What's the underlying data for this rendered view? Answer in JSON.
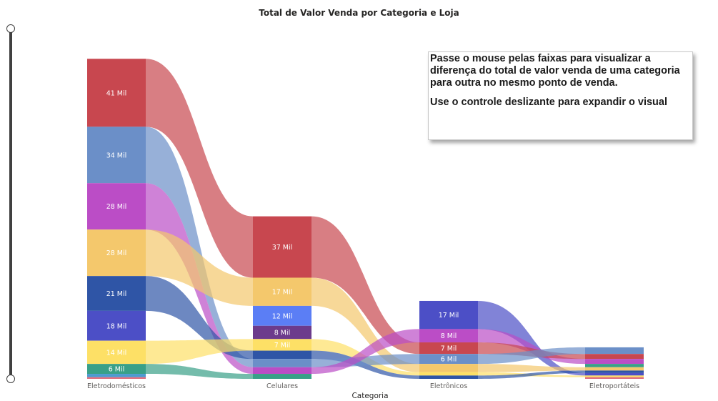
{
  "title": "Total de Valor Venda por Categoria e Loja",
  "info_box": {
    "line1": "Passe o mouse pelas faixas para visualizar a diferença do total de valor venda de uma categoria para outra no mesmo ponto de venda.",
    "line2": "Use o controle deslizante para expandir o visual"
  },
  "chart_data": {
    "type": "sankey",
    "title": "Total de Valor Venda por Categoria e Loja",
    "xlabel": "Categoria",
    "categories": [
      "Eletrodomésticos",
      "Celulares",
      "Eletrônicos",
      "Eletroportáteis"
    ],
    "store_colors": [
      "#c8474f",
      "#6b8fc8",
      "#bb4dc6",
      "#f4c86c",
      "#2f55a6",
      "#4c4fc6",
      "#fde066",
      "#39a088",
      "#e06e7e",
      "#6c3b8c",
      "#5b7ef5",
      "#4d9bd0"
    ],
    "columns": [
      {
        "category": "Eletrodomésticos",
        "segments": [
          {
            "store": 0,
            "value": 41,
            "label": "41 Mil"
          },
          {
            "store": 1,
            "value": 34,
            "label": "34 Mil"
          },
          {
            "store": 2,
            "value": 28,
            "label": "28 Mil"
          },
          {
            "store": 3,
            "value": 28,
            "label": "28 Mil"
          },
          {
            "store": 4,
            "value": 21,
            "label": "21 Mil"
          },
          {
            "store": 5,
            "value": 18,
            "label": "18 Mil"
          },
          {
            "store": 6,
            "value": 14,
            "label": "14 Mil"
          },
          {
            "store": 7,
            "value": 6,
            "label": "6 Mil"
          },
          {
            "store": 11,
            "value": 2,
            "label": ""
          },
          {
            "store": 8,
            "value": 1,
            "label": ""
          }
        ]
      },
      {
        "category": "Celulares",
        "segments": [
          {
            "store": 0,
            "value": 37,
            "label": "37 Mil"
          },
          {
            "store": 3,
            "value": 17,
            "label": "17 Mil"
          },
          {
            "store": 10,
            "value": 12,
            "label": "12 Mil"
          },
          {
            "store": 9,
            "value": 8,
            "label": "8 Mil"
          },
          {
            "store": 6,
            "value": 7,
            "label": "7 Mil"
          },
          {
            "store": 4,
            "value": 5,
            "label": ""
          },
          {
            "store": 1,
            "value": 5,
            "label": ""
          },
          {
            "store": 2,
            "value": 4,
            "label": ""
          },
          {
            "store": 7,
            "value": 3,
            "label": ""
          }
        ]
      },
      {
        "category": "Eletrônicos",
        "segments": [
          {
            "store": 5,
            "value": 17,
            "label": "17 Mil"
          },
          {
            "store": 2,
            "value": 8,
            "label": "8 Mil"
          },
          {
            "store": 0,
            "value": 7,
            "label": "7 Mil"
          },
          {
            "store": 1,
            "value": 6,
            "label": "6 Mil"
          },
          {
            "store": 3,
            "value": 5,
            "label": ""
          },
          {
            "store": 6,
            "value": 2,
            "label": ""
          },
          {
            "store": 4,
            "value": 2,
            "label": ""
          }
        ]
      },
      {
        "category": "Eletroportáteis",
        "segments": [
          {
            "store": 1,
            "value": 4,
            "label": ""
          },
          {
            "store": 0,
            "value": 3,
            "label": ""
          },
          {
            "store": 2,
            "value": 3,
            "label": ""
          },
          {
            "store": 7,
            "value": 2,
            "label": ""
          },
          {
            "store": 3,
            "value": 2,
            "label": ""
          },
          {
            "store": 4,
            "value": 1.5,
            "label": ""
          },
          {
            "store": 5,
            "value": 1.5,
            "label": ""
          },
          {
            "store": 6,
            "value": 1,
            "label": ""
          },
          {
            "store": 8,
            "value": 1,
            "label": ""
          }
        ]
      }
    ]
  }
}
